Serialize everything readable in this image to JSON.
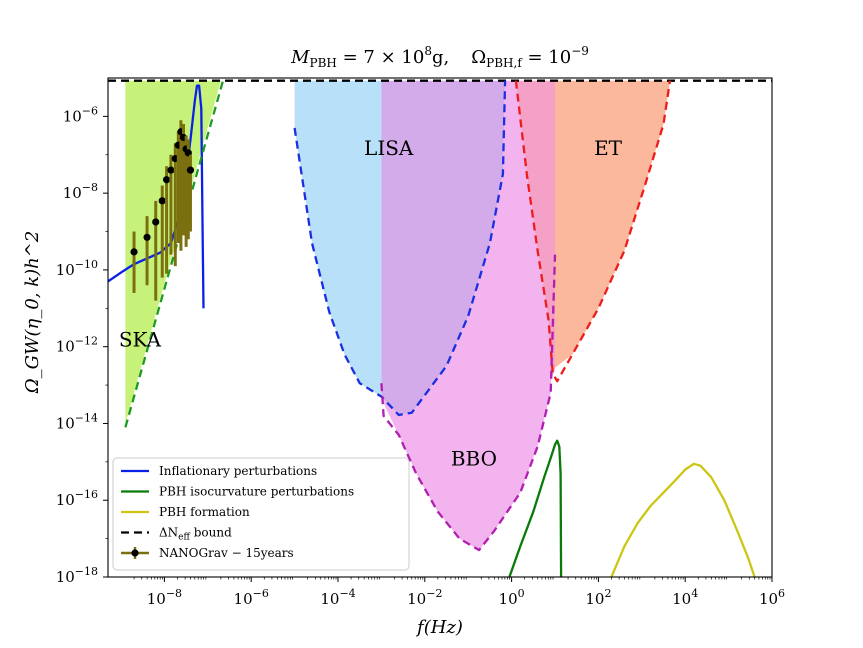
{
  "chart_data": {
    "type": "line",
    "title": "M_PBH = 7 × 10^8 g,   Ω_PBH,f = 10^-9",
    "title_parts": {
      "m_prefix": "M",
      "m_sub": "PBH",
      "m_value": " = 7 × 10",
      "m_exp": "8",
      "m_unit": "g,",
      "omega_prefix": "Ω",
      "omega_sub": "PBH,f",
      "omega_value": " = 10",
      "omega_exp": "−9"
    },
    "xlabel": "f(Hz)",
    "ylabel": "Ω_GW(η_0, k)h^2",
    "xscale": "log",
    "yscale": "log",
    "xlim_log10": [
      -9.3,
      6.0
    ],
    "ylim_log10": [
      -18.0,
      -5.0
    ],
    "x_ticks": [
      {
        "base": "10",
        "exp": "−8",
        "log10": -8
      },
      {
        "base": "10",
        "exp": "−6",
        "log10": -6
      },
      {
        "base": "10",
        "exp": "−4",
        "log10": -4
      },
      {
        "base": "10",
        "exp": "−2",
        "log10": -2
      },
      {
        "base": "10",
        "exp": "0",
        "log10": 0
      },
      {
        "base": "10",
        "exp": "2",
        "log10": 2
      },
      {
        "base": "10",
        "exp": "4",
        "log10": 4
      },
      {
        "base": "10",
        "exp": "6",
        "log10": 6
      }
    ],
    "y_ticks": [
      {
        "base": "10",
        "exp": "−6",
        "log10": -6
      },
      {
        "base": "10",
        "exp": "−8",
        "log10": -8
      },
      {
        "base": "10",
        "exp": "−10",
        "log10": -10
      },
      {
        "base": "10",
        "exp": "−12",
        "log10": -12
      },
      {
        "base": "10",
        "exp": "−14",
        "log10": -14
      },
      {
        "base": "10",
        "exp": "−16",
        "log10": -16
      },
      {
        "base": "10",
        "exp": "−18",
        "log10": -18
      }
    ],
    "regions": [
      {
        "name": "SKA",
        "color": "#c7f27a",
        "points_log10": [
          [
            -8.9,
            -18
          ],
          [
            -8.9,
            -5.07
          ],
          [
            -6.7,
            -5.07
          ],
          [
            -8.9,
            -14.0
          ]
        ]
      },
      {
        "name": "LISA-left",
        "color": "#b8e0f8",
        "points_log10": [
          [
            -5.0,
            -6.3
          ],
          [
            -4.6,
            -9.3
          ],
          [
            -4.2,
            -11.1
          ],
          [
            -3.85,
            -12.2
          ],
          [
            -3.5,
            -12.95
          ],
          [
            -3.0,
            -13.3
          ],
          [
            -3.0,
            -5.07
          ],
          [
            -5.0,
            -5.07
          ]
        ]
      },
      {
        "name": "LISA-right",
        "color": "#d3aaea",
        "points_log10": [
          [
            -3.0,
            -5.07
          ],
          [
            -3.0,
            -13.3
          ],
          [
            -2.6,
            -13.78
          ],
          [
            -2.3,
            -13.72
          ],
          [
            -1.5,
            -12.5
          ],
          [
            -1.0,
            -11.2
          ],
          [
            -0.5,
            -9.3
          ],
          [
            -0.2,
            -7.5
          ],
          [
            -0.15,
            -5.07
          ]
        ]
      },
      {
        "name": "BBO",
        "color": "#f2b3ef",
        "points_log10": [
          [
            -3.0,
            -13.3
          ],
          [
            -2.6,
            -13.78
          ],
          [
            -2.3,
            -13.72
          ],
          [
            -1.5,
            -12.5
          ],
          [
            -1.0,
            -11.2
          ],
          [
            -0.5,
            -9.3
          ],
          [
            -0.2,
            -7.5
          ],
          [
            -0.15,
            -5.07
          ],
          [
            0.1,
            -5.07
          ],
          [
            0.35,
            -7.5
          ],
          [
            0.6,
            -9.5
          ],
          [
            0.85,
            -11.3
          ],
          [
            1.0,
            -12.7
          ],
          [
            1.0,
            -9.6
          ],
          [
            0.9,
            -13.2
          ],
          [
            0.6,
            -14.6
          ],
          [
            0.2,
            -15.8
          ],
          [
            -0.4,
            -16.8
          ],
          [
            -0.75,
            -17.3
          ],
          [
            -1.2,
            -17.0
          ],
          [
            -1.7,
            -16.3
          ],
          [
            -2.2,
            -15.3
          ],
          [
            -2.6,
            -14.3
          ],
          [
            -2.9,
            -13.6
          ]
        ]
      },
      {
        "name": "ET-left",
        "color": "#f5a0c7",
        "points_log10": [
          [
            0.1,
            -5.07
          ],
          [
            0.35,
            -7.5
          ],
          [
            0.6,
            -9.5
          ],
          [
            0.85,
            -11.3
          ],
          [
            0.9,
            -12.9
          ],
          [
            1.0,
            -12.55
          ],
          [
            1.0,
            -5.07
          ]
        ]
      },
      {
        "name": "ET-right",
        "color": "#fbb89c",
        "points_log10": [
          [
            1.0,
            -5.07
          ],
          [
            1.0,
            -12.55
          ],
          [
            1.4,
            -12.2
          ],
          [
            2.0,
            -11.0
          ],
          [
            2.6,
            -9.5
          ],
          [
            3.1,
            -7.7
          ],
          [
            3.5,
            -6.2
          ],
          [
            3.65,
            -5.07
          ]
        ]
      }
    ],
    "region_labels": [
      {
        "text": "LISA",
        "at_log10": [
          -3.4,
          -7.0
        ]
      },
      {
        "text": "ET",
        "at_log10": [
          1.9,
          -7.0
        ]
      },
      {
        "text": "BBO",
        "at_log10": [
          -1.4,
          -15.1
        ]
      },
      {
        "text": "SKA",
        "at_log10": [
          -9.05,
          -12.0
        ]
      }
    ],
    "series": [
      {
        "name": "Inflationary perturbations",
        "color": "#0a22e8",
        "dash": "solid",
        "points_log10": [
          [
            -9.3,
            -10.3
          ],
          [
            -8.95,
            -10.03
          ],
          [
            -8.7,
            -9.85
          ],
          [
            -8.4,
            -9.7
          ],
          [
            -8.1,
            -9.55
          ],
          [
            -7.85,
            -9.3
          ],
          [
            -7.65,
            -8.6
          ],
          [
            -7.5,
            -7.5
          ],
          [
            -7.4,
            -6.6
          ],
          [
            -7.3,
            -5.6
          ],
          [
            -7.25,
            -5.2
          ],
          [
            -7.2,
            -5.2
          ],
          [
            -7.15,
            -5.8
          ],
          [
            -7.12,
            -9.0
          ],
          [
            -7.1,
            -11.0
          ]
        ]
      },
      {
        "name": "PBH isocurvature perturbations",
        "color": "#0a7a0a",
        "dash": "solid",
        "points_log10": [
          [
            -0.05,
            -18.0
          ],
          [
            0.2,
            -17.2
          ],
          [
            0.5,
            -16.3
          ],
          [
            0.75,
            -15.4
          ],
          [
            0.9,
            -14.9
          ],
          [
            1.0,
            -14.55
          ],
          [
            1.05,
            -14.45
          ],
          [
            1.1,
            -14.6
          ],
          [
            1.13,
            -15.3
          ],
          [
            1.14,
            -18.0
          ]
        ]
      },
      {
        "name": "PBH formation",
        "color": "#cbc614",
        "dash": "solid",
        "points_log10": [
          [
            2.3,
            -18.0
          ],
          [
            2.6,
            -17.2
          ],
          [
            2.9,
            -16.6
          ],
          [
            3.2,
            -16.15
          ],
          [
            3.5,
            -15.8
          ],
          [
            3.8,
            -15.45
          ],
          [
            4.0,
            -15.2
          ],
          [
            4.2,
            -15.05
          ],
          [
            4.35,
            -15.1
          ],
          [
            4.6,
            -15.4
          ],
          [
            4.9,
            -16.0
          ],
          [
            5.2,
            -16.8
          ],
          [
            5.45,
            -17.5
          ],
          [
            5.6,
            -18.0
          ]
        ]
      },
      {
        "name": "ΔN_eff bound",
        "color": "#000000",
        "dash": "dashed",
        "points_log10": [
          [
            -9.3,
            -5.07
          ],
          [
            6.0,
            -5.07
          ]
        ]
      },
      {
        "name": "SKA edge",
        "color": "#1e9a1e",
        "dash": "dashed",
        "points_log10": [
          [
            -8.9,
            -14.1
          ],
          [
            -6.65,
            -5.07
          ]
        ]
      },
      {
        "name": "LISA curve",
        "color": "#1a2fe0",
        "dash": "dashed",
        "points_log10": [
          [
            -5.0,
            -6.3
          ],
          [
            -4.6,
            -9.3
          ],
          [
            -4.2,
            -11.1
          ],
          [
            -3.85,
            -12.2
          ],
          [
            -3.5,
            -12.95
          ],
          [
            -3.0,
            -13.3
          ],
          [
            -2.6,
            -13.78
          ],
          [
            -2.3,
            -13.72
          ],
          [
            -1.5,
            -12.5
          ],
          [
            -1.0,
            -11.2
          ],
          [
            -0.5,
            -9.3
          ],
          [
            -0.2,
            -7.5
          ],
          [
            -0.15,
            -5.07
          ]
        ]
      },
      {
        "name": "ET curve",
        "color": "#ee1c1c",
        "dash": "dashed",
        "points_log10": [
          [
            0.1,
            -5.07
          ],
          [
            0.35,
            -7.5
          ],
          [
            0.6,
            -9.5
          ],
          [
            0.85,
            -11.3
          ],
          [
            0.95,
            -12.7
          ],
          [
            1.05,
            -12.9
          ],
          [
            1.4,
            -12.2
          ],
          [
            2.0,
            -11.0
          ],
          [
            2.6,
            -9.5
          ],
          [
            3.1,
            -7.7
          ],
          [
            3.5,
            -6.2
          ],
          [
            3.65,
            -5.07
          ]
        ]
      },
      {
        "name": "BBO curve",
        "color": "#b01fb0",
        "dash": "dashed",
        "points_log10": [
          [
            -3.0,
            -12.95
          ],
          [
            -2.95,
            -13.8
          ],
          [
            -2.6,
            -14.3
          ],
          [
            -2.2,
            -15.3
          ],
          [
            -1.7,
            -16.3
          ],
          [
            -1.2,
            -17.0
          ],
          [
            -0.75,
            -17.3
          ],
          [
            -0.4,
            -16.8
          ],
          [
            0.2,
            -15.8
          ],
          [
            0.6,
            -14.6
          ],
          [
            0.9,
            -13.2
          ],
          [
            1.0,
            -9.6
          ]
        ]
      }
    ],
    "nanograv": {
      "name": "NANOGrav − 15years",
      "color": "#000000",
      "errcolor": "#7a7010",
      "points": [
        {
          "x": -8.7,
          "y": -9.53,
          "lo": -10.6,
          "hi": -9.0
        },
        {
          "x": -8.4,
          "y": -9.15,
          "lo": -10.4,
          "hi": -8.6
        },
        {
          "x": -8.2,
          "y": -8.75,
          "lo": -10.8,
          "hi": -8.2
        },
        {
          "x": -8.05,
          "y": -8.2,
          "lo": -10.2,
          "hi": -7.8
        },
        {
          "x": -7.95,
          "y": -7.65,
          "lo": -10.1,
          "hi": -7.3
        },
        {
          "x": -7.85,
          "y": -7.4,
          "lo": -9.6,
          "hi": -7.0
        },
        {
          "x": -7.75,
          "y": -7.1,
          "lo": -9.9,
          "hi": -6.7
        },
        {
          "x": -7.68,
          "y": -6.75,
          "lo": -9.3,
          "hi": -6.4
        },
        {
          "x": -7.62,
          "y": -6.4,
          "lo": -9.5,
          "hi": -6.1
        },
        {
          "x": -7.56,
          "y": -6.55,
          "lo": -9.1,
          "hi": -6.2
        },
        {
          "x": -7.5,
          "y": -6.85,
          "lo": -9.4,
          "hi": -6.5
        },
        {
          "x": -7.45,
          "y": -6.95,
          "lo": -9.2,
          "hi": -6.6
        },
        {
          "x": -7.4,
          "y": -7.4,
          "lo": -9.0,
          "hi": -7.0
        }
      ]
    },
    "legend": {
      "placement": "lower-left",
      "entries": [
        {
          "label": "Inflationary   perturbations",
          "color": "#0a22e8",
          "kind": "line"
        },
        {
          "label": "PBH   isocurvature   perturbations",
          "color": "#0a7a0a",
          "kind": "line"
        },
        {
          "label": "PBH   formation",
          "color": "#cbc614",
          "kind": "line"
        },
        {
          "label": "ΔN",
          "sub": "eff",
          "suffix": "   bound",
          "color": "#000000",
          "kind": "dash"
        },
        {
          "label": "NANOGrav − 15years",
          "color": "#7a7010",
          "kind": "errorbar"
        }
      ]
    }
  }
}
